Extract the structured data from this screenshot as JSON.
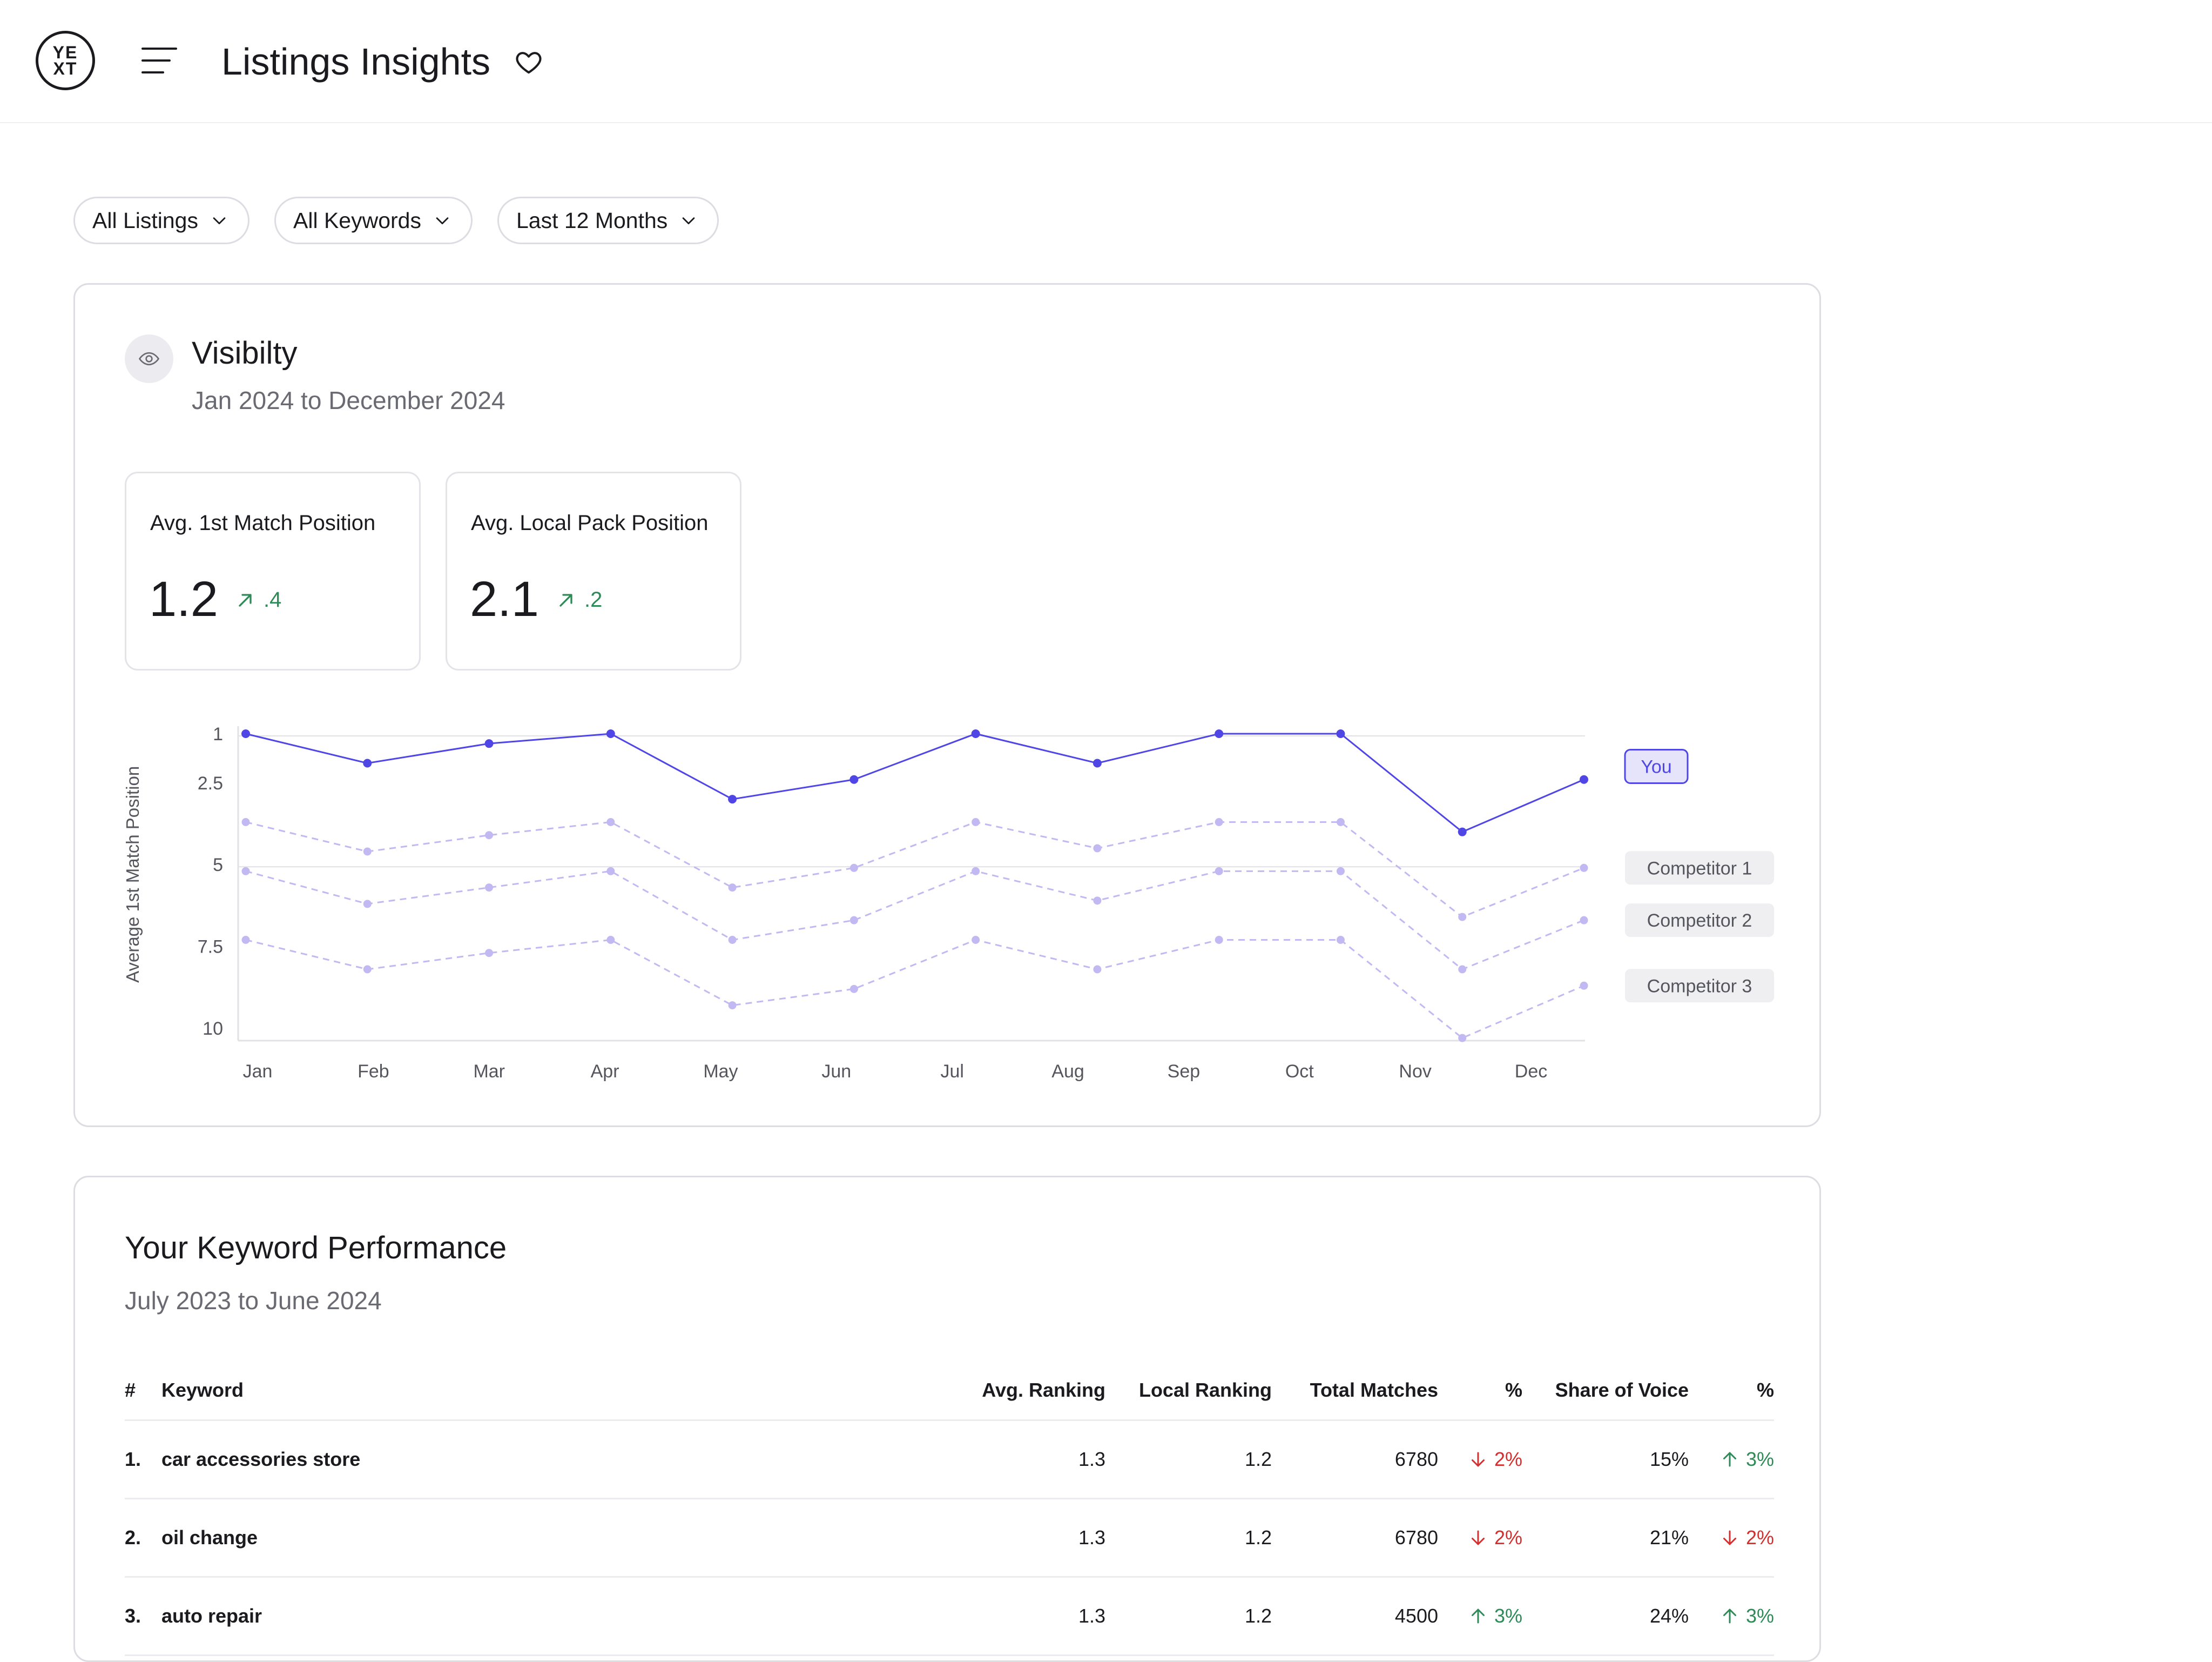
{
  "header": {
    "logo_text": "YEXT",
    "title": "Listings Insights",
    "menu_icon": "hamburger-menu-icon",
    "favorite_icon": "heart-icon"
  },
  "filters": [
    {
      "label": "All Listings"
    },
    {
      "label": "All Keywords"
    },
    {
      "label": "Last 12 Months"
    }
  ],
  "visibility": {
    "title": "Visibilty",
    "subtitle": "Jan 2024 to December 2024",
    "metrics": [
      {
        "label": "Avg. 1st Match Position",
        "value": "1.2",
        "change": ".4",
        "direction": "up"
      },
      {
        "label": "Avg. Local Pack Position",
        "value": "2.1",
        "change": ".2",
        "direction": "up"
      }
    ]
  },
  "chart_data": {
    "type": "line",
    "ylabel": "Average 1st Match Position",
    "y_ticks": [
      "1",
      "2.5",
      "5",
      "7.5",
      "10"
    ],
    "y_scale": "inverted, 1 at top",
    "categories": [
      "Jan",
      "Feb",
      "Mar",
      "Apr",
      "May",
      "Jun",
      "Jul",
      "Aug",
      "Sep",
      "Oct",
      "Nov",
      "Dec"
    ],
    "series": [
      {
        "name": "You",
        "color": "#4f46e5",
        "style": "solid",
        "values": [
          1.0,
          1.9,
          1.3,
          1.0,
          3.0,
          2.4,
          1.0,
          1.9,
          1.0,
          1.0,
          4.0,
          2.4
        ]
      },
      {
        "name": "Competitor 1",
        "color": "#c3b9f2",
        "style": "dashed",
        "values": [
          3.7,
          4.6,
          4.1,
          3.7,
          5.7,
          5.1,
          3.7,
          4.5,
          3.7,
          3.7,
          6.6,
          5.1
        ]
      },
      {
        "name": "Competitor 2",
        "color": "#c3b9f2",
        "style": "dashed",
        "values": [
          5.2,
          6.2,
          5.7,
          5.2,
          7.3,
          6.7,
          5.2,
          6.1,
          5.2,
          5.2,
          8.2,
          6.7
        ]
      },
      {
        "name": "Competitor 3",
        "color": "#c3b9f2",
        "style": "dashed",
        "values": [
          7.3,
          8.2,
          7.7,
          7.3,
          9.3,
          8.8,
          7.3,
          8.2,
          7.3,
          7.3,
          10.3,
          8.7
        ]
      }
    ],
    "grid": true,
    "legend": "right"
  },
  "keywords": {
    "title": "Your Keyword Performance",
    "subtitle": "July 2023 to June 2024",
    "columns": {
      "num": "#",
      "keyword": "Keyword",
      "avg": "Avg. Ranking",
      "local": "Local Ranking",
      "total": "Total Matches",
      "pct1": "%",
      "sov": "Share of Voice",
      "pct2": "%"
    },
    "rows": [
      {
        "num": "1.",
        "keyword": "car accessories store",
        "avg": "1.3",
        "local": "1.2",
        "total": "6780",
        "pct1": "2%",
        "pct1_dir": "down",
        "sov": "15%",
        "pct2": "3%",
        "pct2_dir": "up"
      },
      {
        "num": "2.",
        "keyword": "oil change",
        "avg": "1.3",
        "local": "1.2",
        "total": "6780",
        "pct1": "2%",
        "pct1_dir": "down",
        "sov": "21%",
        "pct2": "2%",
        "pct2_dir": "down"
      },
      {
        "num": "3.",
        "keyword": "auto repair",
        "avg": "1.3",
        "local": "1.2",
        "total": "4500",
        "pct1": "3%",
        "pct1_dir": "up",
        "sov": "24%",
        "pct2": "3%",
        "pct2_dir": "up"
      }
    ]
  }
}
